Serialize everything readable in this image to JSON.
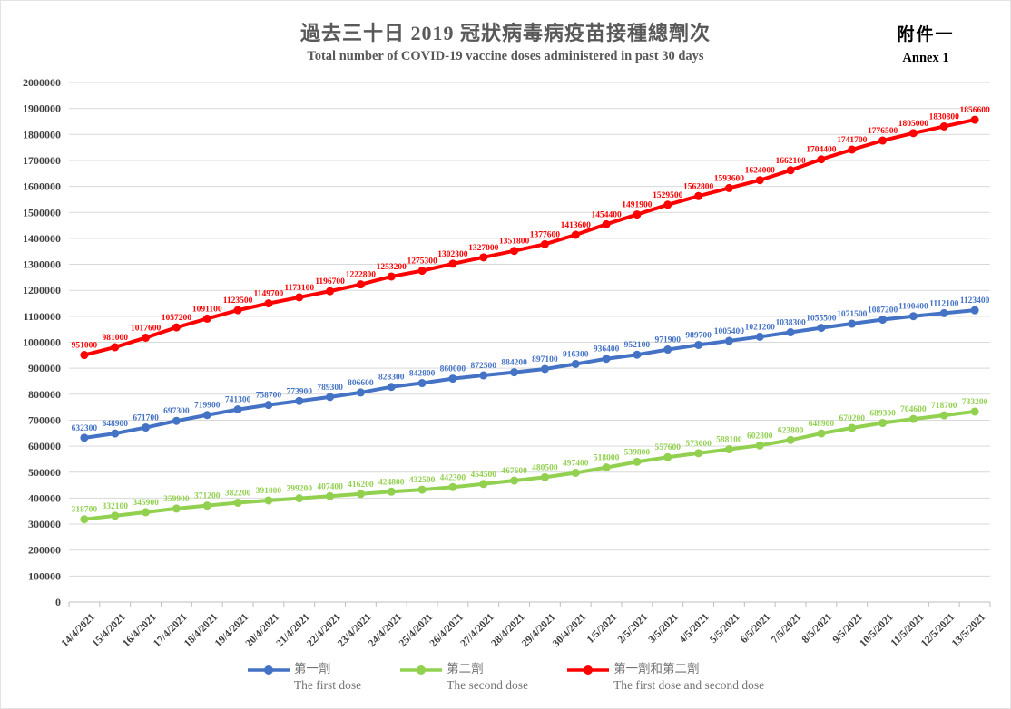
{
  "page": {
    "title_zh": "過去三十日 2019 冠狀病毒病疫苗接種總劑次",
    "title_en": "Total number of COVID-19 vaccine doses administered in past 30 days",
    "annex_zh": "附件一",
    "annex_en": "Annex 1"
  },
  "chart_data": {
    "type": "line",
    "title": "過去三十日 2019 冠狀病毒病疫苗接種總劑次",
    "subtitle": "Total number of COVID-19 vaccine doses administered in past 30 days",
    "grid": true,
    "legend_position": "bottom",
    "data_labels": true,
    "ylim": [
      0,
      2000000
    ],
    "ytick_step": 100000,
    "categories": [
      "14/4/2021",
      "15/4/2021",
      "16/4/2021",
      "17/4/2021",
      "18/4/2021",
      "19/4/2021",
      "20/4/2021",
      "21/4/2021",
      "22/4/2021",
      "23/4/2021",
      "24/4/2021",
      "25/4/2021",
      "26/4/2021",
      "27/4/2021",
      "28/4/2021",
      "29/4/2021",
      "30/4/2021",
      "1/5/2021",
      "2/5/2021",
      "3/5/2021",
      "4/5/2021",
      "5/5/2021",
      "6/5/2021",
      "7/5/2021",
      "8/5/2021",
      "9/5/2021",
      "10/5/2021",
      "11/5/2021",
      "12/5/2021",
      "13/5/2021"
    ],
    "series": [
      {
        "id": "first-dose",
        "name_zh": "第一劑",
        "name_en": "The first dose",
        "color": "#4472C4",
        "values": [
          632300,
          648900,
          671700,
          697300,
          719900,
          741300,
          758700,
          773900,
          789300,
          806600,
          828300,
          842800,
          860000,
          872500,
          884200,
          897100,
          916300,
          936400,
          952100,
          971900,
          989700,
          1005400,
          1021200,
          1038300,
          1055500,
          1071500,
          1087200,
          1100400,
          1112100,
          1123400
        ]
      },
      {
        "id": "second-dose",
        "name_zh": "第二劑",
        "name_en": "The second dose",
        "color": "#92D050",
        "values": [
          318700,
          332100,
          345900,
          359900,
          371200,
          382200,
          391000,
          399200,
          407400,
          416200,
          424800,
          432500,
          442300,
          454500,
          467600,
          480500,
          497400,
          518000,
          539800,
          557600,
          573000,
          588100,
          602800,
          623800,
          648900,
          670200,
          689300,
          704600,
          718700,
          733200
        ]
      },
      {
        "id": "first-and-second-dose",
        "name_zh": "第一劑和第二劑",
        "name_en": "The first dose and second dose",
        "color": "#FF0000",
        "values": [
          951000,
          981000,
          1017600,
          1057200,
          1091100,
          1123500,
          1149700,
          1173100,
          1196700,
          1222800,
          1253200,
          1275300,
          1302300,
          1327000,
          1351800,
          1377600,
          1413600,
          1454400,
          1491900,
          1529500,
          1562800,
          1593600,
          1624000,
          1662100,
          1704400,
          1741700,
          1776500,
          1805000,
          1830800,
          1856600
        ]
      }
    ]
  }
}
